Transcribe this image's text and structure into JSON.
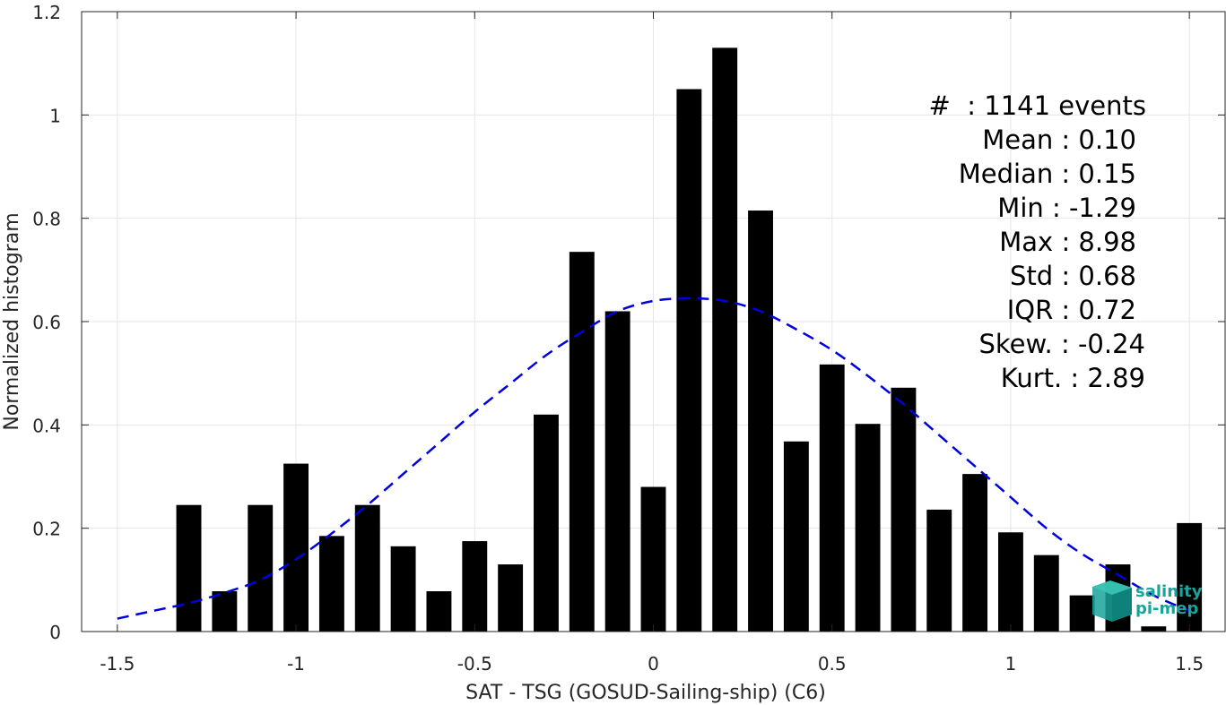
{
  "chart_data": {
    "type": "bar",
    "xlabel": "SAT - TSG (GOSUD-Sailing-ship) (C6)",
    "ylabel": "Normalized histogram",
    "xlim": [
      -1.6,
      1.6
    ],
    "ylim": [
      0,
      1.2
    ],
    "xticks": [
      -1.5,
      -1,
      -0.5,
      0,
      0.5,
      1,
      1.5
    ],
    "xtick_labels": [
      "-1.5",
      "-1",
      "-0.5",
      "0",
      "0.5",
      "1",
      "1.5"
    ],
    "yticks": [
      0,
      0.2,
      0.4,
      0.6,
      0.8,
      1,
      1.2
    ],
    "ytick_labels": [
      "0",
      "0.2",
      "0.4",
      "0.6",
      "0.8",
      "1",
      "1.2"
    ],
    "grid": true,
    "bar_width": 0.07,
    "bar_color": "#000000",
    "series": [
      {
        "x": [
          -1.3,
          -1.2,
          -1.1,
          -1.0,
          -0.9,
          -0.8,
          -0.7,
          -0.6,
          -0.5,
          -0.4,
          -0.3,
          -0.2,
          -0.1,
          0.0,
          0.1,
          0.2,
          0.3,
          0.4,
          0.5,
          0.6,
          0.7,
          0.8,
          0.9,
          1.0,
          1.1,
          1.2,
          1.3,
          1.4,
          1.5
        ],
        "values": [
          0.245,
          0.078,
          0.245,
          0.325,
          0.185,
          0.245,
          0.165,
          0.078,
          0.175,
          0.13,
          0.42,
          0.735,
          0.62,
          0.28,
          1.05,
          1.13,
          0.815,
          0.368,
          0.517,
          0.402,
          0.472,
          0.236,
          0.305,
          0.192,
          0.148,
          0.07,
          0.13,
          0.01,
          0.21
        ]
      }
    ],
    "fit_curve": {
      "style": "dashed",
      "color": "#0000dd",
      "x": [
        -1.5,
        -1.4,
        -1.3,
        -1.2,
        -1.1,
        -1.0,
        -0.9,
        -0.8,
        -0.7,
        -0.6,
        -0.5,
        -0.4,
        -0.3,
        -0.2,
        -0.1,
        0.0,
        0.1,
        0.2,
        0.3,
        0.4,
        0.5,
        0.6,
        0.7,
        0.8,
        0.9,
        1.0,
        1.1,
        1.2,
        1.3,
        1.4,
        1.5
      ],
      "y": [
        0.025,
        0.04,
        0.055,
        0.075,
        0.1,
        0.14,
        0.19,
        0.245,
        0.305,
        0.365,
        0.425,
        0.48,
        0.535,
        0.58,
        0.62,
        0.64,
        0.645,
        0.64,
        0.62,
        0.585,
        0.545,
        0.495,
        0.44,
        0.38,
        0.32,
        0.26,
        0.2,
        0.15,
        0.11,
        0.07,
        0.04
      ]
    }
  },
  "stats": {
    "count_line": "#  : 1141 events",
    "mean": "Mean : 0.10",
    "median": "Median : 0.15",
    "min": "Min : -1.29",
    "max": "Max : 8.98",
    "std": "Std : 0.68",
    "iqr": "IQR : 0.72",
    "skew": "Skew. : -0.24",
    "kurt": "Kurt. : 2.89"
  },
  "logo": {
    "line1": "salinity",
    "line2": "pi-mep",
    "color": "#1aa39a"
  }
}
